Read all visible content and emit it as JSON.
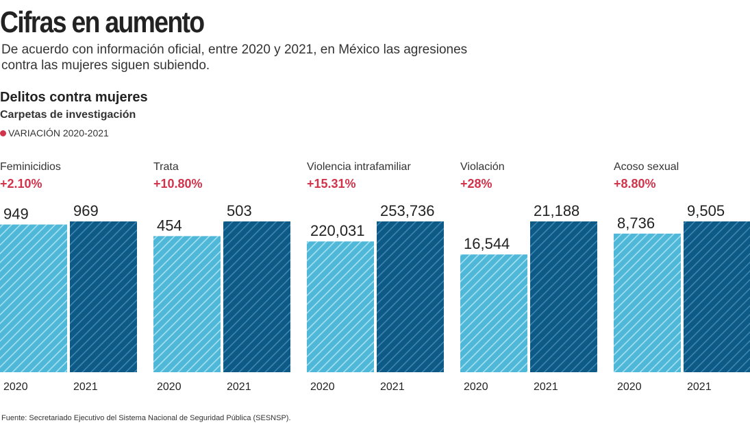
{
  "title": "Cifras en aumento",
  "subtitle_lines": [
    "De acuerdo con información oficial, entre 2020 y 2021, en México las agresiones",
    "contra las mujeres siguen subiendo."
  ],
  "section_title": "Delitos contra mujeres",
  "section_subtitle": "Carpetas de investigación",
  "legend": "VARIACIÓN 2020-2021",
  "source": "Fuente: Secretariado Ejecutivo del Sistema Nacional de Seguridad Pública (SESNSP).",
  "colors": {
    "y2020": "#4fb8d8",
    "y2021": "#0d5a87",
    "variation": "#d1334a"
  },
  "chart_data": {
    "type": "bar",
    "categories": [
      "2020",
      "2021"
    ],
    "groups": [
      {
        "name": "Feminicidios",
        "variation": "+2.10%",
        "values": [
          949,
          969
        ],
        "labels": [
          "949",
          "969"
        ]
      },
      {
        "name": "Trata",
        "variation": "+10.80%",
        "values": [
          454,
          503
        ],
        "labels": [
          "454",
          "503"
        ]
      },
      {
        "name": "Violencia intrafamiliar",
        "variation": "+15.31%",
        "values": [
          220031,
          253736
        ],
        "labels": [
          "220,031",
          "253,736"
        ]
      },
      {
        "name": "Violación",
        "variation": "+28%",
        "values": [
          16544,
          21188
        ],
        "labels": [
          "16,544",
          "21,188"
        ]
      },
      {
        "name": "Acoso sexual",
        "variation": "+8.80%",
        "values": [
          8736,
          9505
        ],
        "labels": [
          "8,736",
          "9,505"
        ]
      }
    ],
    "scale": "each group scaled to its own maximum",
    "grid": false
  }
}
